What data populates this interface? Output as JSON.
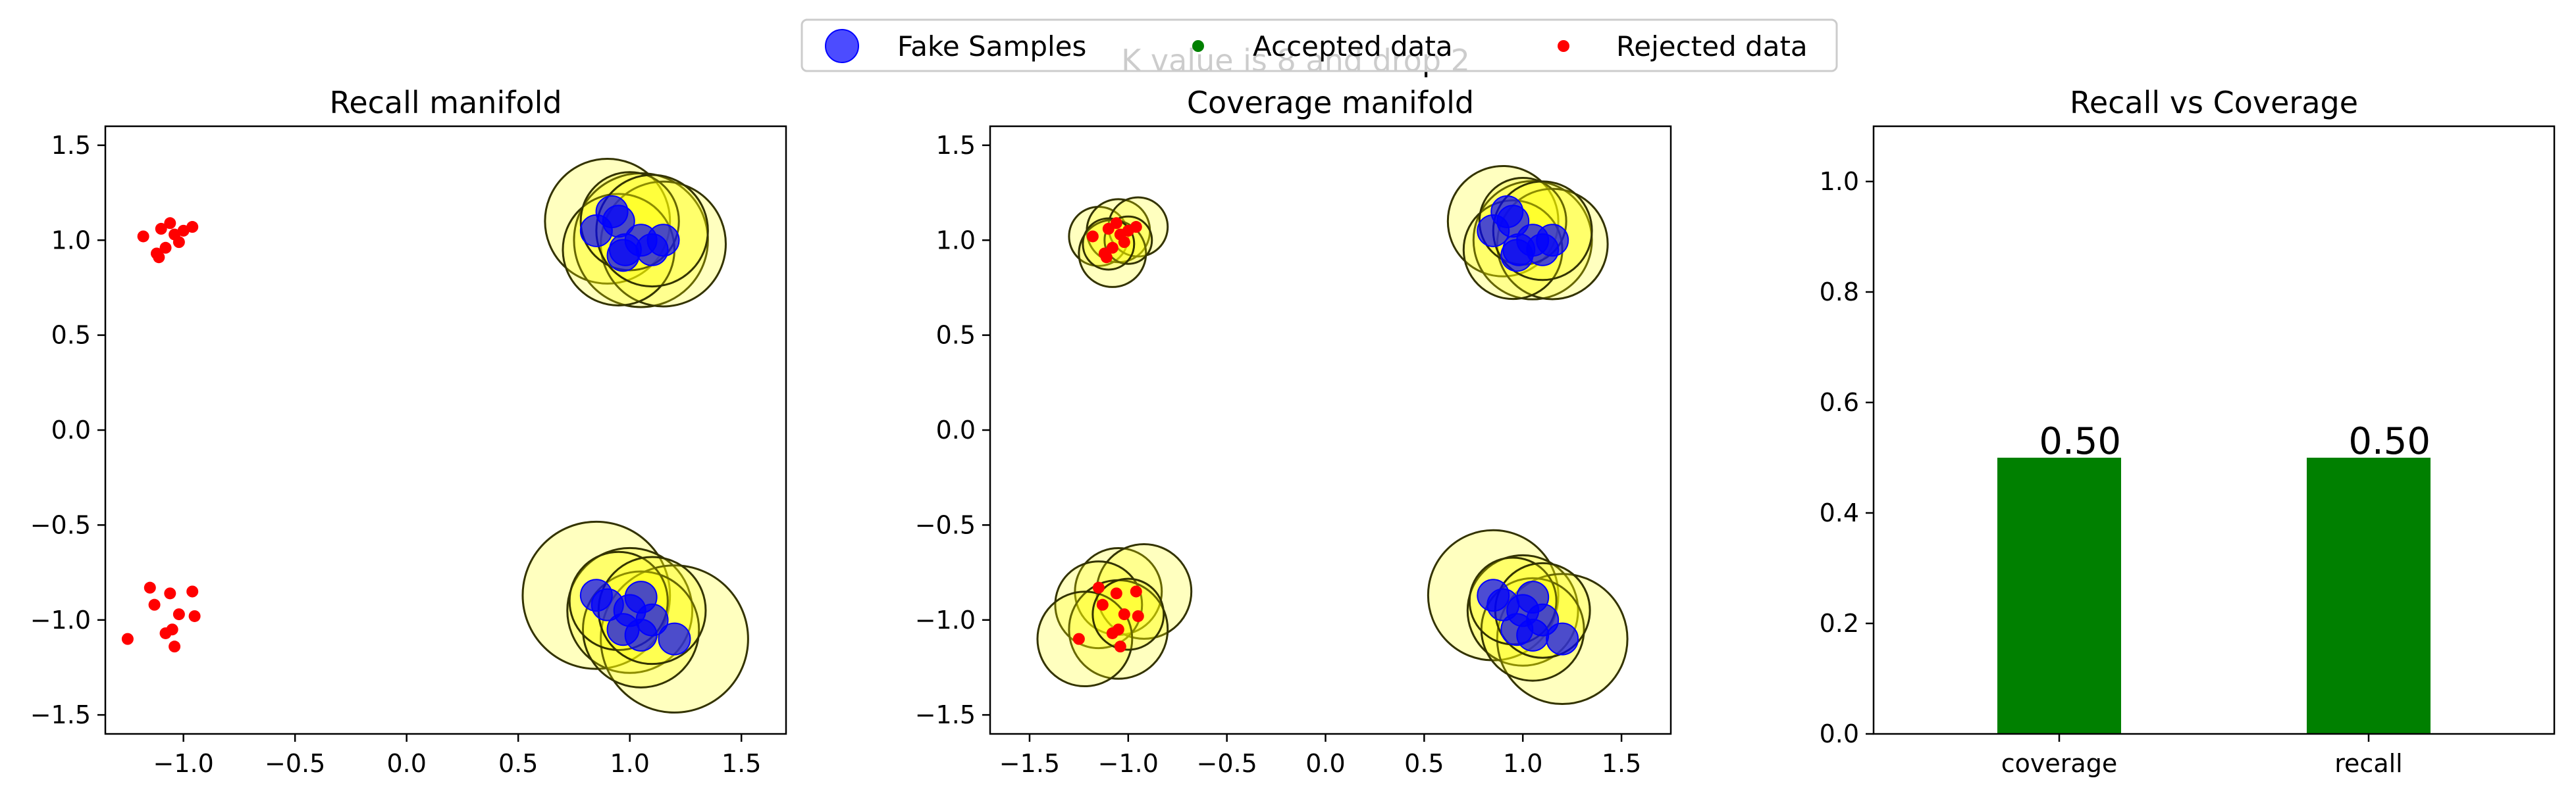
{
  "figure": {
    "suptitle": "K value is 8 and drop 2",
    "legend": {
      "placement": "top-center",
      "entries": [
        {
          "label": "Fake Samples",
          "color": "#0000ff",
          "marker": "large-circle"
        },
        {
          "label": "Accepted data",
          "color": "#008000",
          "marker": "small-circle"
        },
        {
          "label": "Rejected data",
          "color": "#ff0000",
          "marker": "small-circle"
        }
      ]
    }
  },
  "chart_data": [
    {
      "type": "scatter",
      "title": "Recall manifold",
      "xlim": [
        -1.35,
        1.7
      ],
      "ylim": [
        -1.6,
        1.6
      ],
      "xticks": [
        -1.0,
        -0.5,
        0.0,
        0.5,
        1.0,
        1.5
      ],
      "xtick_labels": [
        "−1.0",
        "−0.5",
        "0.0",
        "0.5",
        "1.0",
        "1.5"
      ],
      "yticks": [
        -1.5,
        -1.0,
        -0.5,
        0.0,
        0.5,
        1.0,
        1.5
      ],
      "ytick_labels": [
        "−1.5",
        "−1.0",
        "−0.5",
        "0.0",
        "0.5",
        "1.0",
        "1.5"
      ],
      "colors": {
        "fake": "#0000ff",
        "rejected": "#ff0000",
        "manifold_fill": "#ffff00",
        "manifold_edge": "#333300"
      },
      "manifold_circles": [
        {
          "x": 0.9,
          "y": 1.1,
          "r": 0.28
        },
        {
          "x": 1.05,
          "y": 1.0,
          "r": 0.3
        },
        {
          "x": 1.15,
          "y": 0.98,
          "r": 0.28
        },
        {
          "x": 0.95,
          "y": 0.95,
          "r": 0.25
        },
        {
          "x": 1.0,
          "y": 1.1,
          "r": 0.22
        },
        {
          "x": 1.1,
          "y": 1.05,
          "r": 0.25
        },
        {
          "x": 0.85,
          "y": -0.87,
          "r": 0.33
        },
        {
          "x": 1.0,
          "y": -0.95,
          "r": 0.28
        },
        {
          "x": 1.2,
          "y": -1.1,
          "r": 0.33
        },
        {
          "x": 1.05,
          "y": -1.05,
          "r": 0.26
        },
        {
          "x": 0.95,
          "y": -0.9,
          "r": 0.22
        },
        {
          "x": 1.1,
          "y": -0.95,
          "r": 0.24
        }
      ],
      "fake_samples": [
        {
          "x": 0.85,
          "y": 1.05
        },
        {
          "x": 0.92,
          "y": 1.15
        },
        {
          "x": 0.95,
          "y": 1.1
        },
        {
          "x": 0.98,
          "y": 0.95
        },
        {
          "x": 1.05,
          "y": 1.0
        },
        {
          "x": 1.1,
          "y": 0.95
        },
        {
          "x": 1.15,
          "y": 1.0
        },
        {
          "x": 0.97,
          "y": 0.92
        },
        {
          "x": 0.85,
          "y": -0.87
        },
        {
          "x": 0.9,
          "y": -0.92
        },
        {
          "x": 1.0,
          "y": -0.95
        },
        {
          "x": 1.05,
          "y": -0.88
        },
        {
          "x": 1.1,
          "y": -1.0
        },
        {
          "x": 0.97,
          "y": -1.05
        },
        {
          "x": 1.05,
          "y": -1.08
        },
        {
          "x": 1.2,
          "y": -1.1
        }
      ],
      "accepted": [],
      "rejected": [
        {
          "x": -1.18,
          "y": 1.02
        },
        {
          "x": -1.1,
          "y": 1.06
        },
        {
          "x": -1.06,
          "y": 1.09
        },
        {
          "x": -1.0,
          "y": 1.05
        },
        {
          "x": -0.96,
          "y": 1.07
        },
        {
          "x": -1.02,
          "y": 0.99
        },
        {
          "x": -1.08,
          "y": 0.96
        },
        {
          "x": -1.12,
          "y": 0.93
        },
        {
          "x": -1.11,
          "y": 0.91
        },
        {
          "x": -1.04,
          "y": 1.03
        },
        {
          "x": -1.15,
          "y": -0.83
        },
        {
          "x": -1.06,
          "y": -0.86
        },
        {
          "x": -0.96,
          "y": -0.85
        },
        {
          "x": -1.13,
          "y": -0.92
        },
        {
          "x": -1.02,
          "y": -0.97
        },
        {
          "x": -0.95,
          "y": -0.98
        },
        {
          "x": -1.05,
          "y": -1.05
        },
        {
          "x": -1.08,
          "y": -1.07
        },
        {
          "x": -1.25,
          "y": -1.1
        },
        {
          "x": -1.04,
          "y": -1.14
        }
      ]
    },
    {
      "type": "scatter",
      "title": "Coverage manifold",
      "xlim": [
        -1.7,
        1.75
      ],
      "ylim": [
        -1.6,
        1.6
      ],
      "xticks": [
        -1.5,
        -1.0,
        -0.5,
        0.0,
        0.5,
        1.0,
        1.5
      ],
      "xtick_labels": [
        "−1.5",
        "−1.0",
        "−0.5",
        "0.0",
        "0.5",
        "1.0",
        "1.5"
      ],
      "yticks": [
        -1.5,
        -1.0,
        -0.5,
        0.0,
        0.5,
        1.0,
        1.5
      ],
      "ytick_labels": [
        "−1.5",
        "−1.0",
        "−0.5",
        "0.0",
        "0.5",
        "1.0",
        "1.5"
      ],
      "colors": {
        "fake": "#0000ff",
        "rejected": "#ff0000",
        "manifold_fill": "#ffff00",
        "manifold_edge": "#333300"
      },
      "manifold_circles": [
        {
          "x": -1.15,
          "y": 1.02,
          "r": 0.15
        },
        {
          "x": -1.05,
          "y": 1.05,
          "r": 0.16
        },
        {
          "x": -0.95,
          "y": 1.07,
          "r": 0.15
        },
        {
          "x": -1.08,
          "y": 0.93,
          "r": 0.17
        },
        {
          "x": -1.0,
          "y": 1.0,
          "r": 0.12
        },
        {
          "x": -1.1,
          "y": 0.98,
          "r": 0.13
        },
        {
          "x": -1.05,
          "y": -0.85,
          "r": 0.22
        },
        {
          "x": -0.92,
          "y": -0.85,
          "r": 0.24
        },
        {
          "x": -1.15,
          "y": -0.92,
          "r": 0.22
        },
        {
          "x": -1.05,
          "y": -1.05,
          "r": 0.25
        },
        {
          "x": -1.22,
          "y": -1.1,
          "r": 0.24
        },
        {
          "x": -1.0,
          "y": -0.97,
          "r": 0.18
        },
        {
          "x": 0.9,
          "y": 1.1,
          "r": 0.28
        },
        {
          "x": 1.05,
          "y": 1.0,
          "r": 0.3
        },
        {
          "x": 1.15,
          "y": 0.98,
          "r": 0.28
        },
        {
          "x": 0.95,
          "y": 0.95,
          "r": 0.25
        },
        {
          "x": 1.0,
          "y": 1.1,
          "r": 0.22
        },
        {
          "x": 1.1,
          "y": 1.05,
          "r": 0.25
        },
        {
          "x": 0.85,
          "y": -0.87,
          "r": 0.33
        },
        {
          "x": 1.0,
          "y": -0.95,
          "r": 0.28
        },
        {
          "x": 1.2,
          "y": -1.1,
          "r": 0.33
        },
        {
          "x": 1.05,
          "y": -1.05,
          "r": 0.26
        },
        {
          "x": 0.95,
          "y": -0.9,
          "r": 0.22
        },
        {
          "x": 1.1,
          "y": -0.95,
          "r": 0.24
        }
      ],
      "fake_samples": [
        {
          "x": 0.85,
          "y": 1.05
        },
        {
          "x": 0.92,
          "y": 1.15
        },
        {
          "x": 0.95,
          "y": 1.1
        },
        {
          "x": 0.98,
          "y": 0.95
        },
        {
          "x": 1.05,
          "y": 1.0
        },
        {
          "x": 1.1,
          "y": 0.95
        },
        {
          "x": 1.15,
          "y": 1.0
        },
        {
          "x": 0.97,
          "y": 0.92
        },
        {
          "x": 0.85,
          "y": -0.87
        },
        {
          "x": 0.9,
          "y": -0.92
        },
        {
          "x": 1.0,
          "y": -0.95
        },
        {
          "x": 1.05,
          "y": -0.88
        },
        {
          "x": 1.1,
          "y": -1.0
        },
        {
          "x": 0.97,
          "y": -1.05
        },
        {
          "x": 1.05,
          "y": -1.08
        },
        {
          "x": 1.2,
          "y": -1.1
        }
      ],
      "accepted": [],
      "rejected": [
        {
          "x": -1.18,
          "y": 1.02
        },
        {
          "x": -1.1,
          "y": 1.06
        },
        {
          "x": -1.06,
          "y": 1.09
        },
        {
          "x": -1.0,
          "y": 1.05
        },
        {
          "x": -0.96,
          "y": 1.07
        },
        {
          "x": -1.02,
          "y": 0.99
        },
        {
          "x": -1.08,
          "y": 0.96
        },
        {
          "x": -1.12,
          "y": 0.93
        },
        {
          "x": -1.11,
          "y": 0.91
        },
        {
          "x": -1.04,
          "y": 1.03
        },
        {
          "x": -1.15,
          "y": -0.83
        },
        {
          "x": -1.06,
          "y": -0.86
        },
        {
          "x": -0.96,
          "y": -0.85
        },
        {
          "x": -1.13,
          "y": -0.92
        },
        {
          "x": -1.02,
          "y": -0.97
        },
        {
          "x": -0.95,
          "y": -0.98
        },
        {
          "x": -1.05,
          "y": -1.05
        },
        {
          "x": -1.08,
          "y": -1.07
        },
        {
          "x": -1.25,
          "y": -1.1
        },
        {
          "x": -1.04,
          "y": -1.14
        }
      ]
    },
    {
      "type": "bar",
      "title": "Recall vs Coverage",
      "categories": [
        "coverage",
        "recall"
      ],
      "values": [
        0.5,
        0.5
      ],
      "value_labels": [
        "0.50",
        "0.50"
      ],
      "ylim": [
        0,
        1.1
      ],
      "yticks": [
        0.0,
        0.2,
        0.4,
        0.6,
        0.8,
        1.0
      ],
      "ytick_labels": [
        "0.0",
        "0.2",
        "0.4",
        "0.6",
        "0.8",
        "1.0"
      ],
      "bar_color": "#008000"
    }
  ]
}
